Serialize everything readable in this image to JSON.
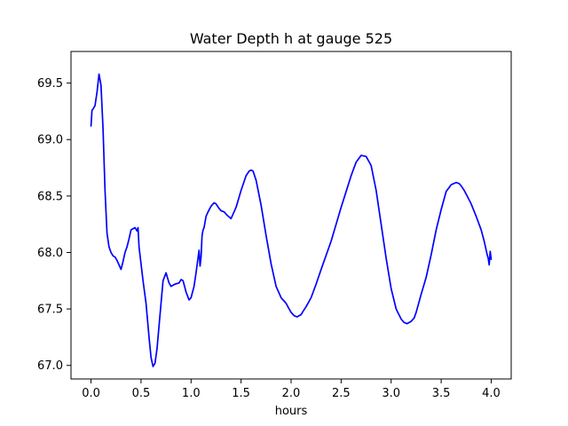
{
  "chart_data": {
    "type": "line",
    "title": "Water Depth h at gauge 525",
    "xlabel": "hours",
    "ylabel": "",
    "xlim": [
      -0.2,
      4.2
    ],
    "ylim": [
      66.88,
      69.78
    ],
    "xticks": [
      0.0,
      0.5,
      1.0,
      1.5,
      2.0,
      2.5,
      3.0,
      3.5,
      4.0
    ],
    "xtick_labels": [
      "0.0",
      "0.5",
      "1.0",
      "1.5",
      "2.0",
      "2.5",
      "3.0",
      "3.5",
      "4.0"
    ],
    "yticks": [
      67.0,
      67.5,
      68.0,
      68.5,
      69.0,
      69.5
    ],
    "ytick_labels": [
      "67.0",
      "67.5",
      "68.0",
      "68.5",
      "69.0",
      "69.5"
    ],
    "grid": false,
    "legend": "none",
    "colors": {
      "line": "#0000ff",
      "axes": "#000000",
      "background": "#ffffff"
    },
    "series": [
      {
        "color": "#0000ff",
        "x": [
          0.0,
          0.01,
          0.02,
          0.04,
          0.06,
          0.08,
          0.1,
          0.12,
          0.14,
          0.16,
          0.18,
          0.2,
          0.22,
          0.24,
          0.26,
          0.28,
          0.3,
          0.32,
          0.34,
          0.36,
          0.38,
          0.4,
          0.42,
          0.44,
          0.46,
          0.47,
          0.48,
          0.5,
          0.52,
          0.55,
          0.58,
          0.6,
          0.62,
          0.64,
          0.66,
          0.68,
          0.7,
          0.72,
          0.75,
          0.78,
          0.8,
          0.84,
          0.88,
          0.9,
          0.92,
          0.95,
          0.98,
          1.0,
          1.03,
          1.05,
          1.08,
          1.09,
          1.1,
          1.11,
          1.12,
          1.13,
          1.15,
          1.17,
          1.2,
          1.23,
          1.25,
          1.28,
          1.3,
          1.33,
          1.36,
          1.4,
          1.45,
          1.5,
          1.55,
          1.58,
          1.6,
          1.62,
          1.65,
          1.7,
          1.75,
          1.8,
          1.85,
          1.9,
          1.95,
          1.98,
          2.0,
          2.03,
          2.06,
          2.08,
          2.1,
          2.12,
          2.15,
          2.2,
          2.25,
          2.3,
          2.4,
          2.5,
          2.6,
          2.65,
          2.7,
          2.75,
          2.8,
          2.85,
          2.9,
          2.95,
          3.0,
          3.05,
          3.1,
          3.13,
          3.16,
          3.2,
          3.23,
          3.25,
          3.3,
          3.35,
          3.4,
          3.45,
          3.5,
          3.55,
          3.6,
          3.65,
          3.68,
          3.7,
          3.73,
          3.76,
          3.8,
          3.85,
          3.9,
          3.93,
          3.95,
          3.96,
          3.97,
          3.98,
          3.99,
          4.0
        ],
        "y": [
          69.12,
          69.26,
          69.27,
          69.3,
          69.42,
          69.58,
          69.48,
          69.1,
          68.55,
          68.17,
          68.05,
          68.0,
          67.97,
          67.96,
          67.93,
          67.89,
          67.85,
          67.92,
          68.0,
          68.05,
          68.12,
          68.2,
          68.21,
          68.22,
          68.19,
          68.22,
          68.05,
          67.9,
          67.75,
          67.55,
          67.25,
          67.07,
          66.99,
          67.02,
          67.15,
          67.35,
          67.55,
          67.75,
          67.82,
          67.73,
          67.7,
          67.72,
          67.73,
          67.76,
          67.75,
          67.65,
          67.58,
          67.6,
          67.7,
          67.82,
          68.02,
          67.88,
          67.96,
          68.15,
          68.2,
          68.22,
          68.32,
          68.36,
          68.41,
          68.44,
          68.43,
          68.39,
          68.37,
          68.36,
          68.33,
          68.3,
          68.4,
          68.55,
          68.68,
          68.72,
          68.73,
          68.72,
          68.64,
          68.42,
          68.15,
          67.9,
          67.7,
          67.6,
          67.55,
          67.5,
          67.47,
          67.44,
          67.43,
          67.44,
          67.45,
          67.48,
          67.52,
          67.6,
          67.72,
          67.85,
          68.1,
          68.4,
          68.68,
          68.8,
          68.86,
          68.85,
          68.77,
          68.55,
          68.25,
          67.95,
          67.68,
          67.5,
          67.41,
          67.38,
          67.37,
          67.39,
          67.42,
          67.47,
          67.63,
          67.78,
          67.98,
          68.2,
          68.38,
          68.54,
          68.6,
          68.62,
          68.61,
          68.59,
          68.55,
          68.5,
          68.43,
          68.32,
          68.2,
          68.1,
          68.02,
          67.98,
          67.95,
          67.89,
          68.01,
          67.94
        ]
      }
    ]
  }
}
